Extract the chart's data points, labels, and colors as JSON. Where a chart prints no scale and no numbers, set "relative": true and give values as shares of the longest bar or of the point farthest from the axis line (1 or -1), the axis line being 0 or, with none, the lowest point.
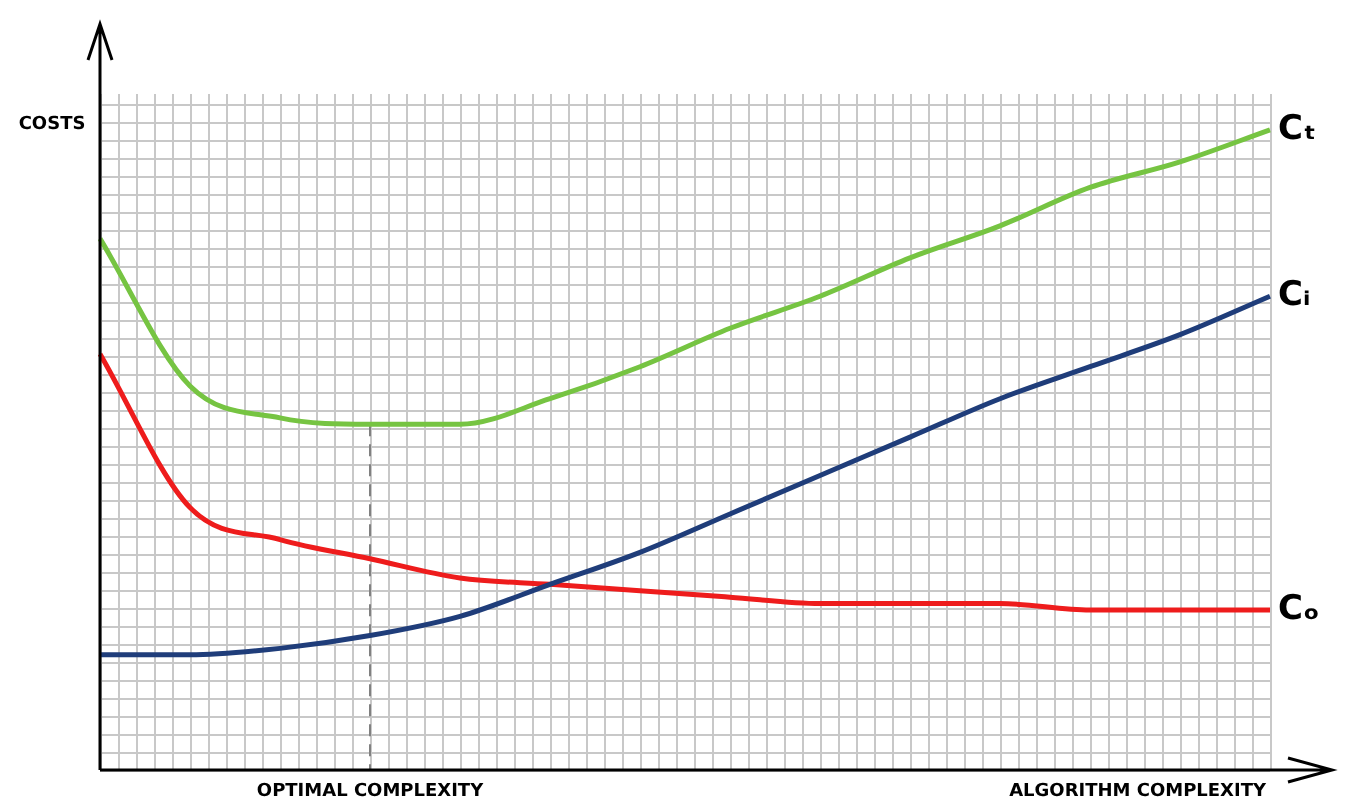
{
  "chart_data": {
    "type": "line",
    "relative": true,
    "ylabel": "COSTS",
    "xlabel": "ALGORITHM COMPLEXITY",
    "grid": true,
    "legend": false,
    "marker": "none",
    "line_style": "solid",
    "tick_labels": false,
    "categories": [
      null,
      null,
      null,
      null,
      null,
      null,
      null,
      null,
      null,
      null,
      null,
      null,
      null,
      null
    ],
    "series": [
      {
        "name": "Cₜ",
        "color": "#76c442",
        "values": [
          0.83,
          0.6,
          0.55,
          0.54,
          0.54,
          0.58,
          0.63,
          0.69,
          0.74,
          0.8,
          0.85,
          0.91,
          0.95,
          1
        ]
      },
      {
        "name": "Cᵢ",
        "color": "#1f3d7a",
        "values": [
          0.18,
          0.18,
          0.19,
          0.21,
          0.24,
          0.29,
          0.34,
          0.4,
          0.46,
          0.52,
          0.58,
          0.63,
          0.68,
          0.74
        ]
      },
      {
        "name": "Cₒ",
        "color": "#ee1c1c",
        "values": [
          0.65,
          0.41,
          0.36,
          0.33,
          0.3,
          0.29,
          0.28,
          0.27,
          0.26,
          0.26,
          0.26,
          0.25,
          0.25,
          0.25
        ]
      }
    ],
    "annotations": [
      "OPTIMAL COMPLEXITY"
    ]
  }
}
